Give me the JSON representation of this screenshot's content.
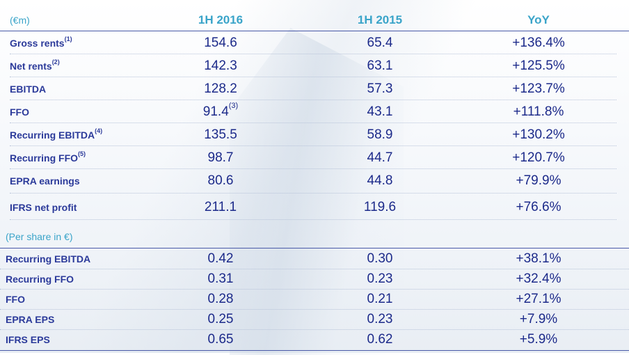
{
  "header": {
    "unit_label": "(€m)",
    "col1": "1H 2016",
    "col2": "1H 2015",
    "col3": "YoY"
  },
  "rows": [
    {
      "label": "Gross rents",
      "note": "(1)",
      "v1": "154.6",
      "v1_note": "",
      "v2": "65.4",
      "v3": "+136.4%"
    },
    {
      "label": "Net rents",
      "note": "(2)",
      "v1": "142.3",
      "v1_note": "",
      "v2": "63.1",
      "v3": "+125.5%"
    },
    {
      "label": "EBITDA",
      "note": "",
      "v1": "128.2",
      "v1_note": "",
      "v2": "57.3",
      "v3": "+123.7%"
    },
    {
      "label": "FFO",
      "note": "",
      "v1": "91.4",
      "v1_note": "(3)",
      "v2": "43.1",
      "v3": "+111.8%"
    },
    {
      "label": "Recurring EBITDA",
      "note": "(4)",
      "v1": "135.5",
      "v1_note": "",
      "v2": "58.9",
      "v3": "+130.2%"
    },
    {
      "label": "Recurring FFO",
      "note": "(5)",
      "v1": "98.7",
      "v1_note": "",
      "v2": "44.7",
      "v3": "+120.7%"
    },
    {
      "label": "EPRA earnings",
      "note": "",
      "v1": "80.6",
      "v1_note": "",
      "v2": "44.8",
      "v3": "+79.9%"
    },
    {
      "label": "IFRS net profit",
      "note": "",
      "v1": "211.1",
      "v1_note": "",
      "v2": "119.6",
      "v3": "+76.6%"
    }
  ],
  "per_share_label": "(Per share in €)",
  "per_share_rows": [
    {
      "label": "Recurring EBITDA",
      "v1": "0.42",
      "v2": "0.30",
      "v3": "+38.1%"
    },
    {
      "label": "Recurring FFO",
      "v1": "0.31",
      "v2": "0.23",
      "v3": "+32.4%"
    },
    {
      "label": "FFO",
      "v1": "0.28",
      "v2": "0.21",
      "v3": "+27.1%"
    },
    {
      "label": "EPRA EPS",
      "v1": "0.25",
      "v2": "0.23",
      "v3": "+7.9%"
    },
    {
      "label": "IFRS EPS",
      "v1": "0.65",
      "v2": "0.62",
      "v3": "+5.9%"
    }
  ]
}
